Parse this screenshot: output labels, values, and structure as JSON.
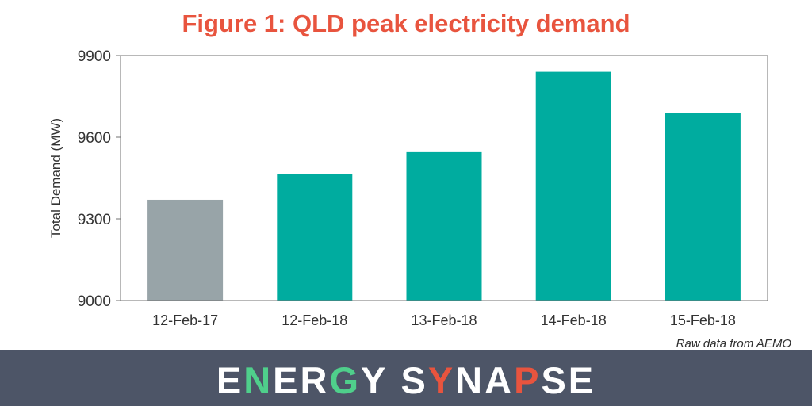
{
  "title": "Figure 1: QLD peak electricity demand",
  "source_note": "Raw data from AEMO",
  "footer": {
    "brand_text": "ENERGY SYNAPSE"
  },
  "colors": {
    "title": "#e8543e",
    "highlight_bar": "#00ac9f",
    "reference_bar": "#98a4a8",
    "footer_bg": "#4d5567",
    "brand_text": "#ffffff",
    "brand_accent_green": "#4fcf8b",
    "brand_accent_red": "#e8543e"
  },
  "chart_data": {
    "type": "bar",
    "categories": [
      "12-Feb-17",
      "12-Feb-18",
      "13-Feb-18",
      "14-Feb-18",
      "15-Feb-18"
    ],
    "values": [
      9370,
      9465,
      9545,
      9840,
      9690
    ],
    "bar_colors": [
      "#98a4a8",
      "#00ac9f",
      "#00ac9f",
      "#00ac9f",
      "#00ac9f"
    ],
    "title": "Figure 1: QLD peak electricity demand",
    "xlabel": "",
    "ylabel": "Total Demand (MW)",
    "ylim": [
      9000,
      9900
    ],
    "yticks": [
      9000,
      9300,
      9600,
      9900
    ],
    "grid": false,
    "legend": "none"
  }
}
